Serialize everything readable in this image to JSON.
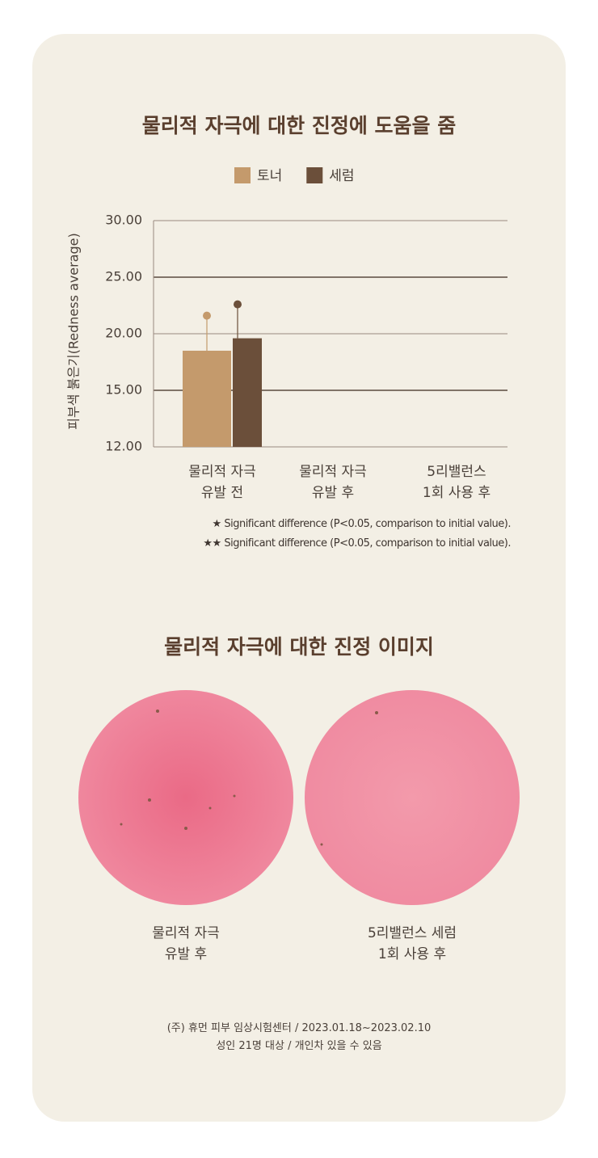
{
  "chart_data": {
    "type": "bar",
    "title": "물리적 자극에 대한 진정에 도움을 줌",
    "y_label": "피부색 붉은기(Redness average)",
    "categories": [
      "물리적 자극\n유발 전",
      "물리적 자극\n유발 후",
      "5리밸런스\n1회 사용 후"
    ],
    "series": [
      {
        "name": "토너",
        "color": "#c49a6c",
        "values": [
          18.5,
          null,
          null
        ],
        "errors": [
          3.1,
          null,
          null
        ]
      },
      {
        "name": "세럼",
        "color": "#6b4f3a",
        "values": [
          19.6,
          null,
          null
        ],
        "errors": [
          3.0,
          null,
          null
        ]
      }
    ],
    "ylim": [
      12,
      30
    ],
    "yticks": [
      {
        "value": 12,
        "label": "12.00"
      },
      {
        "value": 15,
        "label": "15.00"
      },
      {
        "value": 20,
        "label": "20.00"
      },
      {
        "value": 25,
        "label": "25.00"
      },
      {
        "value": 30,
        "label": "30.00"
      }
    ],
    "grid": true,
    "legend": "top",
    "notes": [
      "★ Significant difference (P<0.05, comparison to initial value).",
      "★★ Significant difference (P<0.05, comparison to initial value)."
    ]
  },
  "images_section": {
    "title": "물리적 자극에 대한 진정 이미지",
    "images": [
      {
        "caption": "물리적 자극\n유발 후"
      },
      {
        "caption": "5리밸런스 세럼\n1회 사용 후"
      }
    ]
  },
  "footer": [
    "(주) 휴먼 피부 임상시험센터 / 2023.01.18~2023.02.10",
    "성인 21명 대상  / 개인차 있을 수 있음"
  ]
}
